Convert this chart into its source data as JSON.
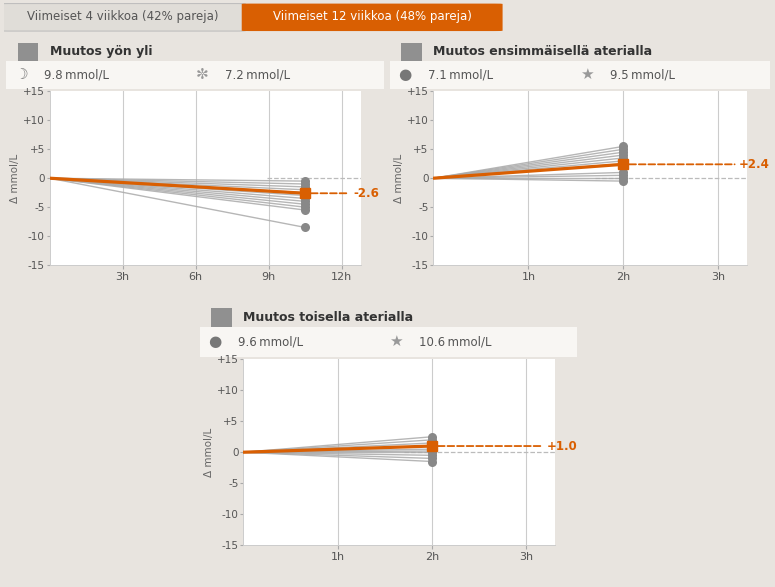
{
  "bg_color": "#e8e4df",
  "panel_bg": "#f0ede9",
  "plot_bg": "#ffffff",
  "tab_inactive_text": "Viimeiset 4 viikkoa (42% pareja)",
  "tab_active_text": "Viimeiset 12 viikkoa (48% pareja)",
  "tab_active_bg": "#d95f02",
  "tab_active_fg": "#ffffff",
  "tab_inactive_bg": "#e0ddd8",
  "tab_inactive_fg": "#555555",
  "orange": "#d95f02",
  "panels": [
    {
      "title": "Muutos yön yli",
      "title_icon": "☽",
      "stat1_icon": "☽",
      "stat1": "9.8 mmol/L",
      "stat2_icon": "✼",
      "stat2": "7.2 mmol/L",
      "xticks": [
        3,
        6,
        9,
        12
      ],
      "xlabels": [
        "3h",
        "6h",
        "9h",
        "12h"
      ],
      "xlim": [
        0,
        12.8
      ],
      "ylim": [
        -15,
        15
      ],
      "yticks": [
        -15,
        -10,
        -5,
        0,
        5,
        10,
        15
      ],
      "ytick_labels": [
        "-15",
        "-10",
        "-5",
        "0",
        "+5",
        "+10",
        "+15"
      ],
      "mean_value": -2.6,
      "mean_x": 10.5,
      "annotation": "-2.6",
      "gray_lines_y": [
        -0.5,
        -1.0,
        -1.5,
        -2.0,
        -2.5,
        -3.0,
        -3.5,
        -4.0,
        -4.5,
        -5.0,
        -5.5,
        -8.5
      ],
      "dots_x": 10.5,
      "dots_y": [
        -0.5,
        -1.0,
        -1.5,
        -2.0,
        -2.5,
        -3.0,
        -3.5,
        -4.0,
        -4.5,
        -5.0,
        -5.5,
        -8.5
      ]
    },
    {
      "title": "Muutos ensimmäisellä aterialla",
      "title_icon": "□",
      "stat1_icon": "●",
      "stat1": "7.1 mmol/L",
      "stat2_icon": "★",
      "stat2": "9.5 mmol/L",
      "xticks": [
        1,
        2,
        3
      ],
      "xlabels": [
        "1h",
        "2h",
        "3h"
      ],
      "xlim": [
        0,
        3.3
      ],
      "ylim": [
        -15,
        15
      ],
      "yticks": [
        -15,
        -10,
        -5,
        0,
        5,
        10,
        15
      ],
      "ytick_labels": [
        "-15",
        "-10",
        "-5",
        "0",
        "+5",
        "+10",
        "+15"
      ],
      "mean_value": 2.4,
      "mean_x": 2.0,
      "annotation": "+2.4",
      "gray_lines_y": [
        5.5,
        5.0,
        4.5,
        4.0,
        3.5,
        3.0,
        2.5,
        1.0,
        0.5,
        0.0,
        -0.5
      ],
      "dots_x": 2.0,
      "dots_y": [
        5.5,
        5.0,
        4.5,
        4.0,
        3.5,
        3.0,
        2.5,
        1.0,
        0.5,
        0.0,
        -0.5
      ]
    },
    {
      "title": "Muutos toisella aterialla",
      "title_icon": "□",
      "stat1_icon": "●",
      "stat1": "9.6 mmol/L",
      "stat2_icon": "★",
      "stat2": "10.6 mmol/L",
      "xticks": [
        1,
        2,
        3
      ],
      "xlabels": [
        "1h",
        "2h",
        "3h"
      ],
      "xlim": [
        0,
        3.3
      ],
      "ylim": [
        -15,
        15
      ],
      "yticks": [
        -15,
        -10,
        -5,
        0,
        5,
        10,
        15
      ],
      "ytick_labels": [
        "-15",
        "-10",
        "-5",
        "0",
        "+5",
        "+10",
        "+15"
      ],
      "mean_value": 1.0,
      "mean_x": 2.0,
      "annotation": "+1.0",
      "gray_lines_y": [
        2.5,
        2.0,
        1.5,
        1.0,
        0.5,
        0.2,
        0.0,
        -0.5,
        -1.0,
        -1.5
      ],
      "dots_x": 2.0,
      "dots_y": [
        2.5,
        2.0,
        1.5,
        1.0,
        0.5,
        0.2,
        0.0,
        -0.5,
        -1.0,
        -1.5
      ]
    }
  ]
}
